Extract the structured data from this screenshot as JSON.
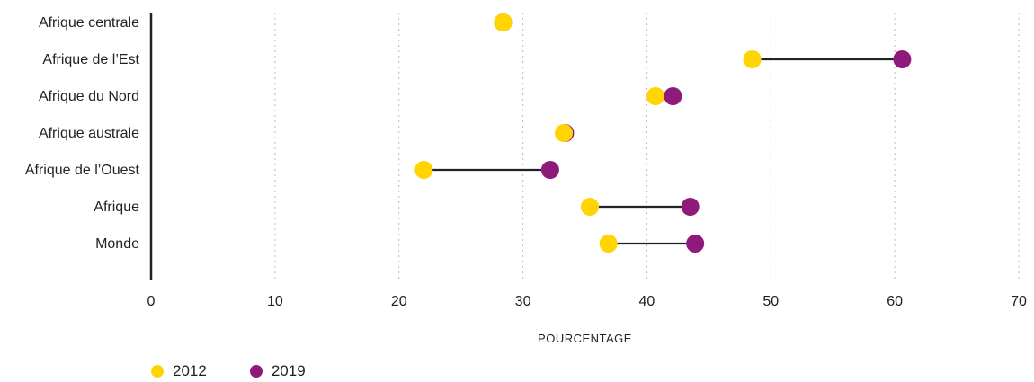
{
  "chart_data": {
    "type": "dumbbell",
    "categories": [
      "Afrique centrale",
      "Afrique de l’Est",
      "Afrique du Nord",
      "Afrique australe",
      "Afrique de l’Ouest",
      "Afrique",
      "Monde"
    ],
    "series": [
      {
        "name": "2012",
        "color": "#FFD400",
        "values": [
          28.4,
          48.5,
          40.7,
          33.3,
          22.0,
          35.4,
          36.9
        ]
      },
      {
        "name": "2019",
        "color": "#8E1B7A",
        "values": [
          28.4,
          60.6,
          42.1,
          33.4,
          32.2,
          43.5,
          43.9
        ]
      }
    ],
    "xlabel": "POURCENTAGE",
    "xlim": [
      0,
      70
    ],
    "xticks": [
      0,
      10,
      20,
      30,
      40,
      50,
      60,
      70
    ],
    "grid": "vertical dotted",
    "legend_position": "bottom-left"
  },
  "legend": [
    {
      "label": "2012",
      "color": "#FFD400"
    },
    {
      "label": "2019",
      "color": "#8E1B7A"
    }
  ]
}
